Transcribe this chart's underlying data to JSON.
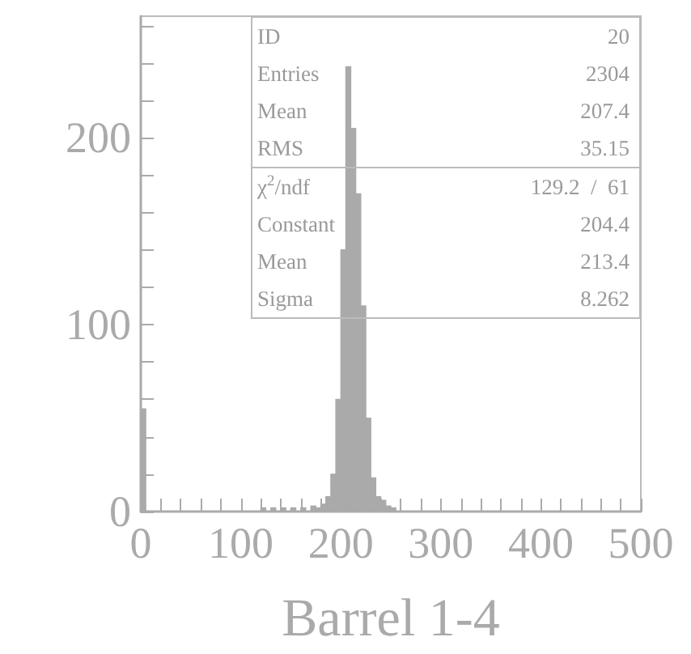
{
  "chart_data": {
    "type": "histogram",
    "xlabel": "Barrel 1-4",
    "color": "#aaaaaa",
    "bins": [
      0,
      5,
      10,
      15,
      20,
      25,
      30,
      35,
      40,
      45,
      50,
      55,
      60,
      65,
      70,
      75,
      80,
      85,
      90,
      95,
      100,
      105,
      110,
      115,
      120,
      125,
      130,
      135,
      140,
      145,
      150,
      155,
      160,
      165,
      170,
      175,
      180,
      185,
      190,
      195,
      200,
      205,
      210,
      215,
      220,
      225,
      230,
      235,
      240,
      245,
      250,
      255,
      260,
      265,
      270,
      275,
      280,
      285,
      290,
      295,
      300,
      305,
      310,
      315,
      320,
      325,
      330,
      335,
      340,
      345,
      350,
      355,
      360,
      365,
      370,
      375,
      380,
      385,
      390,
      395,
      400,
      405,
      410,
      415,
      420,
      425,
      430,
      435,
      440,
      445,
      450,
      455,
      460,
      465,
      470,
      475,
      480,
      485,
      490,
      495,
      500
    ],
    "values": [
      55,
      0,
      0,
      0,
      0,
      0,
      0,
      0,
      0,
      0,
      0,
      0,
      0,
      0,
      0,
      0,
      0,
      0,
      0,
      0,
      0,
      0,
      0,
      0,
      2,
      0,
      2,
      0,
      2,
      0,
      2,
      0,
      2,
      0,
      3,
      2,
      4,
      8,
      20,
      60,
      140,
      238,
      205,
      170,
      110,
      50,
      18,
      8,
      6,
      3,
      2,
      0,
      0,
      0,
      0,
      0,
      0,
      0,
      0,
      0,
      0,
      0,
      0,
      0,
      0,
      0,
      0,
      0,
      0,
      0,
      0,
      0,
      0,
      0,
      0,
      0,
      0,
      0,
      0,
      0,
      0,
      0,
      0,
      0,
      0,
      0,
      0,
      0,
      0,
      0,
      0,
      0,
      0,
      0,
      0,
      0,
      0,
      0,
      0,
      0
    ],
    "xlim": [
      0,
      500
    ],
    "xticks": [
      0,
      {
        "value": 20,
        "label": null
      },
      {
        "value": 40,
        "label": null
      },
      {
        "value": 60,
        "label": null
      },
      {
        "value": 80,
        "label": null
      },
      100,
      {
        "value": 120,
        "label": null
      },
      {
        "value": 140,
        "label": null
      },
      {
        "value": 160,
        "label": null
      },
      {
        "value": 180,
        "label": null
      },
      200,
      {
        "value": 220,
        "label": null
      },
      {
        "value": 240,
        "label": null
      },
      {
        "value": 260,
        "label": null
      },
      {
        "value": 280,
        "label": null
      },
      300,
      {
        "value": 320,
        "label": null
      },
      {
        "value": 340,
        "label": null
      },
      {
        "value": 360,
        "label": null
      },
      {
        "value": 380,
        "label": null
      },
      400,
      {
        "value": 420,
        "label": null
      },
      {
        "value": 440,
        "label": null
      },
      {
        "value": 460,
        "label": null
      },
      {
        "value": 480,
        "label": null
      },
      500
    ],
    "ylim": [
      0,
      265
    ],
    "yticks": [
      0,
      {
        "value": 20,
        "label": null
      },
      {
        "value": 40,
        "label": null
      },
      {
        "value": 60,
        "label": null
      },
      {
        "value": 80,
        "label": null
      },
      100,
      {
        "value": 120,
        "label": null
      },
      {
        "value": 140,
        "label": null
      },
      {
        "value": 160,
        "label": null
      },
      {
        "value": 180,
        "label": null
      },
      200,
      {
        "value": 220,
        "label": null
      },
      {
        "value": 240,
        "label": null
      },
      {
        "value": 260,
        "label": null
      }
    ],
    "annotations": [
      "ID",
      "20",
      "Entries",
      "2304",
      "Mean",
      "207.4",
      "RMS",
      "35.15",
      "χ$^{2}$/ndf",
      "129.2  /  61",
      "Constant",
      "204.4",
      "Mean",
      "213.4",
      "Sigma",
      "8.262"
    ],
    "grid": false
  }
}
